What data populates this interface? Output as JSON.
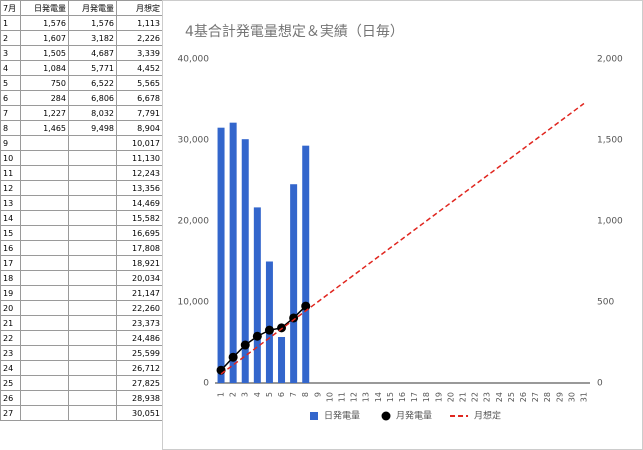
{
  "table": {
    "header": [
      "7月",
      "日発電量",
      "月発電量",
      "月想定"
    ],
    "rows": [
      [
        "1",
        "1,576",
        "1,576",
        "1,113"
      ],
      [
        "2",
        "1,607",
        "3,182",
        "2,226"
      ],
      [
        "3",
        "1,505",
        "4,687",
        "3,339"
      ],
      [
        "4",
        "1,084",
        "5,771",
        "4,452"
      ],
      [
        "5",
        "750",
        "6,522",
        "5,565"
      ],
      [
        "6",
        "284",
        "6,806",
        "6,678"
      ],
      [
        "7",
        "1,227",
        "8,032",
        "7,791"
      ],
      [
        "8",
        "1,465",
        "9,498",
        "8,904"
      ],
      [
        "9",
        null,
        null,
        "10,017"
      ],
      [
        "10",
        null,
        null,
        "11,130"
      ],
      [
        "11",
        null,
        null,
        "12,243"
      ],
      [
        "12",
        null,
        null,
        "13,356"
      ],
      [
        "13",
        null,
        null,
        "14,469"
      ],
      [
        "14",
        null,
        null,
        "15,582"
      ],
      [
        "15",
        null,
        null,
        "16,695"
      ],
      [
        "16",
        null,
        null,
        "17,808"
      ],
      [
        "17",
        null,
        null,
        "18,921"
      ],
      [
        "18",
        null,
        null,
        "20,034"
      ],
      [
        "19",
        null,
        null,
        "21,147"
      ],
      [
        "20",
        null,
        null,
        "22,260"
      ],
      [
        "21",
        null,
        null,
        "23,373"
      ],
      [
        "22",
        null,
        null,
        "24,486"
      ],
      [
        "23",
        null,
        null,
        "25,599"
      ],
      [
        "24",
        null,
        null,
        "26,712"
      ],
      [
        "25",
        null,
        null,
        "27,825"
      ],
      [
        "26",
        null,
        null,
        "28,938"
      ],
      [
        "27",
        null,
        null,
        "30,051"
      ]
    ]
  },
  "chart_data": {
    "type": "bar",
    "title": "4基合計発電量想定＆実績（日毎）",
    "categories": [
      1,
      2,
      3,
      4,
      5,
      6,
      7,
      8,
      9,
      10,
      11,
      12,
      13,
      14,
      15,
      16,
      17,
      18,
      19,
      20,
      21,
      22,
      23,
      24,
      25,
      26,
      27,
      28,
      29,
      30,
      31
    ],
    "series": [
      {
        "name": "日発電量",
        "type": "bar",
        "axis": "y2",
        "color": "#3366cc",
        "values": [
          1576,
          1607,
          1505,
          1084,
          750,
          284,
          1227,
          1465,
          null,
          null,
          null,
          null,
          null,
          null,
          null,
          null,
          null,
          null,
          null,
          null,
          null,
          null,
          null,
          null,
          null,
          null,
          null,
          null,
          null,
          null,
          null
        ]
      },
      {
        "name": "月発電量",
        "type": "line",
        "color": "#000000",
        "markers": true,
        "values": [
          1576,
          3182,
          4687,
          5771,
          6522,
          6806,
          8032,
          9498,
          null,
          null,
          null,
          null,
          null,
          null,
          null,
          null,
          null,
          null,
          null,
          null,
          null,
          null,
          null,
          null,
          null,
          null,
          null,
          null,
          null,
          null,
          null
        ]
      },
      {
        "name": "月想定",
        "type": "line",
        "color": "#e0261f",
        "dashed": true,
        "values": [
          1113,
          2226,
          3339,
          4452,
          5565,
          6678,
          7791,
          8904,
          10017,
          11130,
          12243,
          13356,
          14469,
          15582,
          16695,
          17808,
          18921,
          20034,
          21147,
          22260,
          23373,
          24486,
          25599,
          26712,
          27825,
          28938,
          30051,
          31164,
          32277,
          33390,
          34503
        ]
      }
    ],
    "ylim": [
      0,
      40000
    ],
    "yticks": [
      0,
      {
        "value": 10000,
        "label": "10,000"
      },
      {
        "value": 20000,
        "label": "20,000"
      },
      {
        "value": 30000,
        "label": "30,000"
      },
      {
        "value": 40000,
        "label": "40,000"
      }
    ],
    "y2lim": [
      0,
      2000
    ],
    "y2ticks": [
      0,
      500,
      {
        "value": 1000,
        "label": "1,000"
      },
      {
        "value": 1500,
        "label": "1,500"
      },
      {
        "value": 2000,
        "label": "2,000"
      }
    ],
    "grid": false,
    "legend": "bottom"
  }
}
